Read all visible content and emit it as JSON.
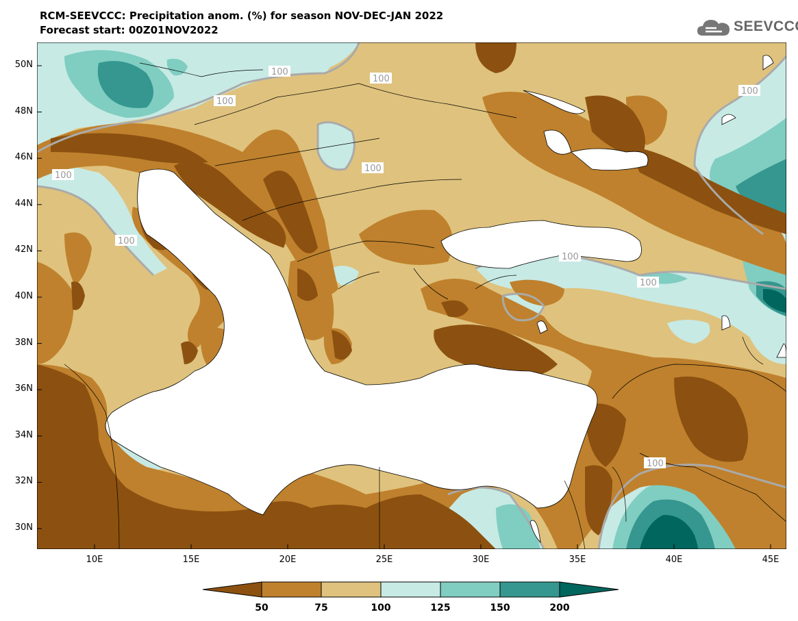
{
  "header": {
    "title": "RCM-SEEVCCC: Precipitation anom. (%) for season NOV-DEC-JAN 2022",
    "subtitle": "Forecast start: 00Z01NOV2022",
    "logo_text": "SEEVCCC"
  },
  "map": {
    "lat_labels": [
      "50N",
      "48N",
      "46N",
      "44N",
      "42N",
      "40N",
      "38N",
      "36N",
      "34N",
      "32N",
      "30N"
    ],
    "lon_labels": [
      "10E",
      "15E",
      "20E",
      "25E",
      "30E",
      "35E",
      "40E",
      "45E"
    ],
    "contour_labels": [
      "100",
      "100",
      "100",
      "100",
      "100",
      "100",
      "100",
      "100",
      "100",
      "100"
    ]
  },
  "legend": {
    "labels": [
      "50",
      "75",
      "100",
      "125",
      "150",
      "200"
    ],
    "colors": [
      "#8c5110",
      "#bf812d",
      "#dfc27d",
      "#c7eae5",
      "#80cdc1",
      "#35978f",
      "#01665e"
    ]
  }
}
